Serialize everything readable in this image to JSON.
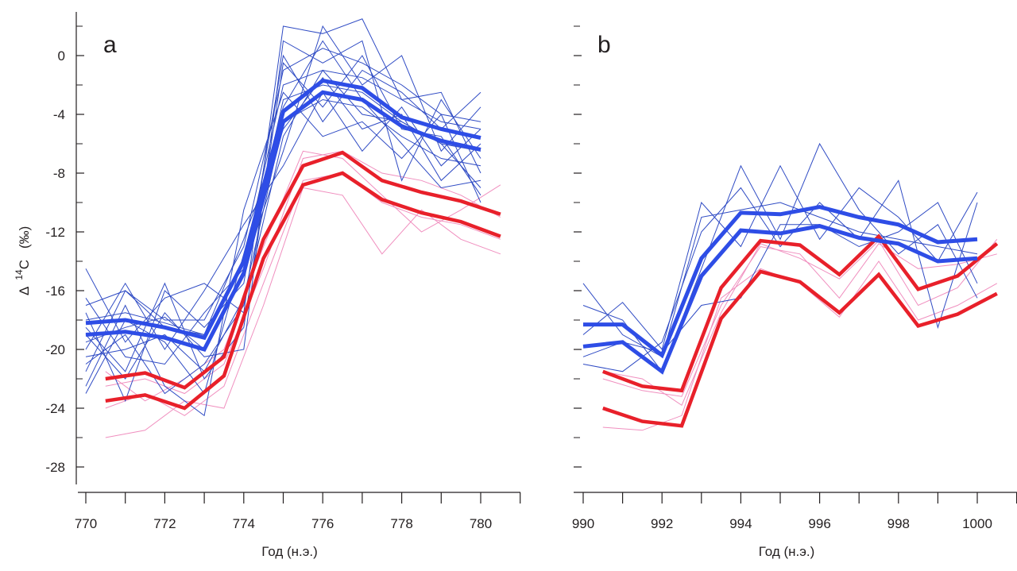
{
  "chart_data": {
    "type": "line",
    "ylabel": {
      "delta": "Δ",
      "superscript": "14",
      "element": "C",
      "unit": "(‰)"
    },
    "ylim": [
      -30,
      3
    ],
    "yticks": [
      0,
      -4,
      -8,
      -12,
      -16,
      -20,
      -24,
      -28
    ],
    "ytick_labels": [
      "0",
      "-4",
      "-8",
      "-12",
      "-16",
      "-20",
      "-24",
      "-28"
    ],
    "grid": false,
    "colors": {
      "blue_bold": "#2e4de6",
      "blue_thin": "#2f4bc4",
      "red_bold": "#e8202a",
      "pink_thin": "#f08fbf"
    },
    "panels": [
      {
        "label": "a",
        "xlabel": "Год (н.э.)",
        "xlim": [
          770,
          781
        ],
        "xticks": [
          770,
          772,
          774,
          776,
          778,
          780
        ],
        "xtick_labels": [
          "770",
          "772",
          "774",
          "776",
          "778",
          "780"
        ],
        "thin_blue": [
          {
            "x": [
              770,
              771,
              772,
              773,
              774,
              775,
              776,
              777,
              778,
              779,
              780
            ],
            "y": [
              -18.0,
              -17.5,
              -18.2,
              -19.0,
              -14.0,
              -2.0,
              -1.0,
              -1.5,
              -3.0,
              -4.5,
              -5.0
            ]
          },
          {
            "x": [
              770,
              771,
              772,
              773,
              774,
              775,
              776,
              777,
              778,
              779,
              780
            ],
            "y": [
              -19.5,
              -18.5,
              -17.8,
              -20.0,
              -15.0,
              -3.0,
              -2.0,
              -2.5,
              -4.5,
              -6.0,
              -6.5
            ]
          },
          {
            "x": [
              770,
              771,
              772,
              773,
              774,
              775,
              776,
              777,
              778,
              779,
              780
            ],
            "y": [
              -17.0,
              -16.0,
              -18.0,
              -18.0,
              -13.0,
              -1.0,
              0.5,
              -0.5,
              -2.0,
              -4.0,
              -4.5
            ]
          },
          {
            "x": [
              770,
              771,
              772,
              773,
              774,
              775,
              776,
              777,
              778,
              779,
              780
            ],
            "y": [
              -20.5,
              -20.0,
              -19.0,
              -21.5,
              -16.5,
              -4.5,
              -3.0,
              -3.5,
              -5.5,
              -7.0,
              -7.5
            ]
          },
          {
            "x": [
              770,
              771,
              772,
              773,
              774,
              775,
              776,
              777,
              778,
              779,
              780
            ],
            "y": [
              -14.5,
              -19.5,
              -16.5,
              -15.5,
              -17.5,
              2.0,
              1.5,
              2.5,
              -3.0,
              -2.5,
              -8.0
            ]
          },
          {
            "x": [
              770,
              771,
              772,
              773,
              774,
              775,
              776,
              777,
              778,
              779,
              780
            ],
            "y": [
              -21.5,
              -16.0,
              -18.5,
              -19.0,
              -12.5,
              -5.0,
              -1.5,
              -5.0,
              -4.0,
              -8.5,
              -6.0
            ]
          },
          {
            "x": [
              770,
              771,
              772,
              773,
              774,
              775,
              776,
              777,
              778,
              779,
              780
            ],
            "y": [
              -18.5,
              -21.5,
              -15.5,
              -22.0,
              -18.5,
              -0.5,
              -3.5,
              0.0,
              -5.0,
              -5.5,
              -9.5
            ]
          },
          {
            "x": [
              770,
              771,
              772,
              773,
              774,
              775,
              776,
              777,
              778,
              779,
              780
            ],
            "y": [
              -16.5,
              -20.5,
              -21.0,
              -17.5,
              -14.5,
              -6.5,
              2.0,
              -2.0,
              0.0,
              -6.5,
              -3.5
            ]
          },
          {
            "x": [
              770,
              771,
              772,
              773,
              774,
              775,
              776,
              777,
              778,
              779,
              780
            ],
            "y": [
              -22.5,
              -17.0,
              -22.5,
              -24.5,
              -10.5,
              -2.5,
              -5.5,
              -4.5,
              -7.0,
              -4.0,
              -10.0
            ]
          },
          {
            "x": [
              770,
              771,
              772,
              773,
              774,
              775,
              776,
              777,
              778,
              779,
              780
            ],
            "y": [
              -19.0,
              -22.0,
              -17.5,
              -20.5,
              -20.0,
              1.0,
              -0.5,
              1.0,
              -8.5,
              -3.0,
              -7.0
            ]
          },
          {
            "x": [
              770,
              771,
              772,
              773,
              774,
              775,
              776,
              777,
              778,
              779,
              780
            ],
            "y": [
              -20.0,
              -15.5,
              -20.0,
              -16.0,
              -11.5,
              -7.5,
              -2.5,
              -6.5,
              -3.5,
              -7.5,
              -5.0
            ]
          },
          {
            "x": [
              770,
              771,
              772,
              773,
              774,
              775,
              776,
              777,
              778,
              779,
              780
            ],
            "y": [
              -23.0,
              -18.0,
              -19.5,
              -23.0,
              -13.5,
              -3.5,
              1.0,
              -3.0,
              -6.0,
              -9.0,
              -8.5
            ]
          },
          {
            "x": [
              770,
              771,
              772,
              773,
              774,
              775,
              776,
              777,
              778,
              779,
              780
            ],
            "y": [
              -17.5,
              -23.5,
              -16.0,
              -18.5,
              -15.5,
              0.0,
              -4.5,
              -1.0,
              -2.5,
              -5.0,
              -2.5
            ]
          },
          {
            "x": [
              770,
              771,
              772,
              773,
              774,
              775,
              776,
              777,
              778,
              779,
              780
            ],
            "y": [
              -21.0,
              -19.0,
              -23.0,
              -21.0,
              -17.0,
              -5.5,
              -1.0,
              -4.0,
              -4.5,
              -6.0,
              -9.0
            ]
          }
        ],
        "thin_pink": [
          {
            "x": [
              770.5,
              771.5,
              772.5,
              773.5,
              774.5,
              775.5,
              776.5,
              777.5,
              778.5,
              779.5,
              780.5
            ],
            "y": [
              -22.5,
              -22.0,
              -23.0,
              -21.0,
              -14.5,
              -7.0,
              -6.5,
              -8.0,
              -8.5,
              -9.5,
              -11.0
            ]
          },
          {
            "x": [
              770.5,
              771.5,
              772.5,
              773.5,
              774.5,
              775.5,
              776.5,
              777.5,
              778.5,
              779.5,
              780.5
            ],
            "y": [
              -24.0,
              -23.0,
              -24.5,
              -22.5,
              -15.5,
              -8.5,
              -8.0,
              -10.0,
              -11.0,
              -11.5,
              -12.5
            ]
          },
          {
            "x": [
              770.5,
              771.5,
              772.5,
              773.5,
              774.5,
              775.5,
              776.5,
              777.5,
              778.5,
              779.5,
              780.5
            ],
            "y": [
              -26.0,
              -25.5,
              -23.5,
              -24.0,
              -17.0,
              -9.0,
              -9.5,
              -13.5,
              -10.5,
              -12.5,
              -13.5
            ]
          },
          {
            "x": [
              770.5,
              771.5,
              772.5,
              773.5,
              774.5,
              775.5,
              776.5,
              777.5,
              778.5,
              779.5,
              780.5
            ],
            "y": [
              -21.5,
              -23.5,
              -22.0,
              -20.0,
              -13.0,
              -6.5,
              -7.0,
              -9.5,
              -12.0,
              -10.5,
              -8.8
            ]
          }
        ],
        "bold_blue": [
          {
            "x": [
              770,
              771,
              772,
              773,
              774,
              775,
              776,
              777,
              778,
              779,
              780
            ],
            "y": [
              -18.2,
              -18.0,
              -18.5,
              -19.2,
              -14.0,
              -3.8,
              -1.7,
              -2.2,
              -4.2,
              -5.0,
              -5.6
            ]
          },
          {
            "x": [
              770,
              771,
              772,
              773,
              774,
              775,
              776,
              777,
              778,
              779,
              780
            ],
            "y": [
              -19.0,
              -18.8,
              -19.2,
              -20.0,
              -14.8,
              -4.5,
              -2.5,
              -3.0,
              -4.8,
              -5.8,
              -6.4
            ]
          }
        ],
        "bold_red": [
          {
            "x": [
              770.5,
              771.5,
              772.5,
              773.5,
              774.5,
              775.5,
              776.5,
              777.5,
              778.5,
              779.5,
              780.5
            ],
            "y": [
              -22.0,
              -21.6,
              -22.6,
              -20.5,
              -12.5,
              -7.5,
              -6.6,
              -8.5,
              -9.3,
              -9.9,
              -10.8
            ]
          },
          {
            "x": [
              770.5,
              771.5,
              772.5,
              773.5,
              774.5,
              775.5,
              776.5,
              777.5,
              778.5,
              779.5,
              780.5
            ],
            "y": [
              -23.5,
              -23.1,
              -24.0,
              -21.8,
              -13.8,
              -8.8,
              -8.0,
              -9.8,
              -10.7,
              -11.3,
              -12.3
            ]
          }
        ]
      },
      {
        "label": "b",
        "xlabel": "Год (н.э.)",
        "xlim": [
          990,
          1001
        ],
        "xticks": [
          990,
          992,
          994,
          996,
          998,
          1000
        ],
        "xtick_labels": [
          "990",
          "992",
          "994",
          "996",
          "998",
          "1000"
        ],
        "thin_blue": [
          {
            "x": [
              990,
              991,
              992,
              993,
              994,
              995,
              996,
              997,
              998,
              999,
              1000
            ],
            "y": [
              -15.5,
              -19.0,
              -20.5,
              -11.0,
              -10.5,
              -10.0,
              -11.0,
              -12.0,
              -12.5,
              -13.0,
              -13.5
            ]
          },
          {
            "x": [
              990,
              991,
              992,
              993,
              994,
              995,
              996,
              997,
              998,
              999,
              1000
            ],
            "y": [
              -17.0,
              -18.0,
              -21.5,
              -14.5,
              -7.5,
              -12.5,
              -6.0,
              -10.5,
              -13.5,
              -11.5,
              -16.5
            ]
          },
          {
            "x": [
              990,
              991,
              992,
              993,
              994,
              995,
              996,
              997,
              998,
              999,
              1000
            ],
            "y": [
              -19.0,
              -16.8,
              -20.0,
              -10.0,
              -13.0,
              -7.5,
              -12.5,
              -9.0,
              -11.0,
              -14.0,
              -9.3
            ]
          },
          {
            "x": [
              990,
              991,
              992,
              993,
              994,
              995,
              996,
              997,
              998,
              999,
              1000
            ],
            "y": [
              -21.0,
              -21.5,
              -19.5,
              -12.0,
              -9.0,
              -13.0,
              -10.0,
              -12.5,
              -8.5,
              -18.5,
              -10.0
            ]
          },
          {
            "x": [
              990,
              991,
              992,
              993,
              994,
              995,
              996,
              997,
              998,
              999,
              1000
            ],
            "y": [
              -20.5,
              -19.5,
              -20.2,
              -17.0,
              -16.5,
              -11.5,
              -11.5,
              -13.0,
              -12.0,
              -10.0,
              -15.5
            ]
          }
        ],
        "thin_pink": [
          {
            "x": [
              990.5,
              991.5,
              992.5,
              993.5,
              994.5,
              995.5,
              996.5,
              997.5,
              998.5,
              999.5,
              1000.5
            ],
            "y": [
              -22.0,
              -22.8,
              -23.2,
              -17.0,
              -13.0,
              -13.5,
              -16.5,
              -12.8,
              -14.5,
              -14.2,
              -13.5
            ]
          },
          {
            "x": [
              990.5,
              991.5,
              992.5,
              993.5,
              994.5,
              995.5,
              996.5,
              997.5,
              998.5,
              999.5,
              1000.5
            ],
            "y": [
              -25.3,
              -25.5,
              -24.5,
              -16.5,
              -14.5,
              -15.5,
              -17.8,
              -14.0,
              -18.0,
              -17.0,
              -15.5
            ]
          },
          {
            "x": [
              990.5,
              991.5,
              992.5,
              993.5,
              994.5,
              995.5,
              996.5,
              997.5,
              998.5,
              999.5,
              1000.5
            ],
            "y": [
              -21.5,
              -22.0,
              -23.8,
              -17.5,
              -12.8,
              -13.8,
              -15.2,
              -12.6,
              -17.0,
              -15.8,
              -12.5
            ]
          }
        ],
        "bold_blue": [
          {
            "x": [
              990,
              991,
              992,
              993,
              994,
              995,
              996,
              997,
              998,
              999,
              1000
            ],
            "y": [
              -18.3,
              -18.3,
              -20.4,
              -13.8,
              -10.7,
              -10.8,
              -10.3,
              -11.0,
              -11.5,
              -12.7,
              -12.5
            ]
          },
          {
            "x": [
              990,
              991,
              992,
              993,
              994,
              995,
              996,
              997,
              998,
              999,
              1000
            ],
            "y": [
              -19.8,
              -19.5,
              -21.5,
              -15.0,
              -11.9,
              -12.1,
              -11.6,
              -12.4,
              -12.8,
              -14.0,
              -13.8
            ]
          }
        ],
        "bold_red": [
          {
            "x": [
              990.5,
              991.5,
              992.5,
              993.5,
              994.5,
              995.5,
              996.5,
              997.5,
              998.5,
              999.5,
              1000.5
            ],
            "y": [
              -21.5,
              -22.5,
              -22.8,
              -15.8,
              -12.6,
              -12.9,
              -14.9,
              -12.3,
              -15.9,
              -15.0,
              -12.8
            ]
          },
          {
            "x": [
              990.5,
              991.5,
              992.5,
              993.5,
              994.5,
              995.5,
              996.5,
              997.5,
              998.5,
              999.5,
              1000.5
            ],
            "y": [
              -24.0,
              -24.9,
              -25.2,
              -17.9,
              -14.7,
              -15.4,
              -17.5,
              -14.9,
              -18.4,
              -17.6,
              -16.2
            ]
          }
        ]
      }
    ]
  }
}
